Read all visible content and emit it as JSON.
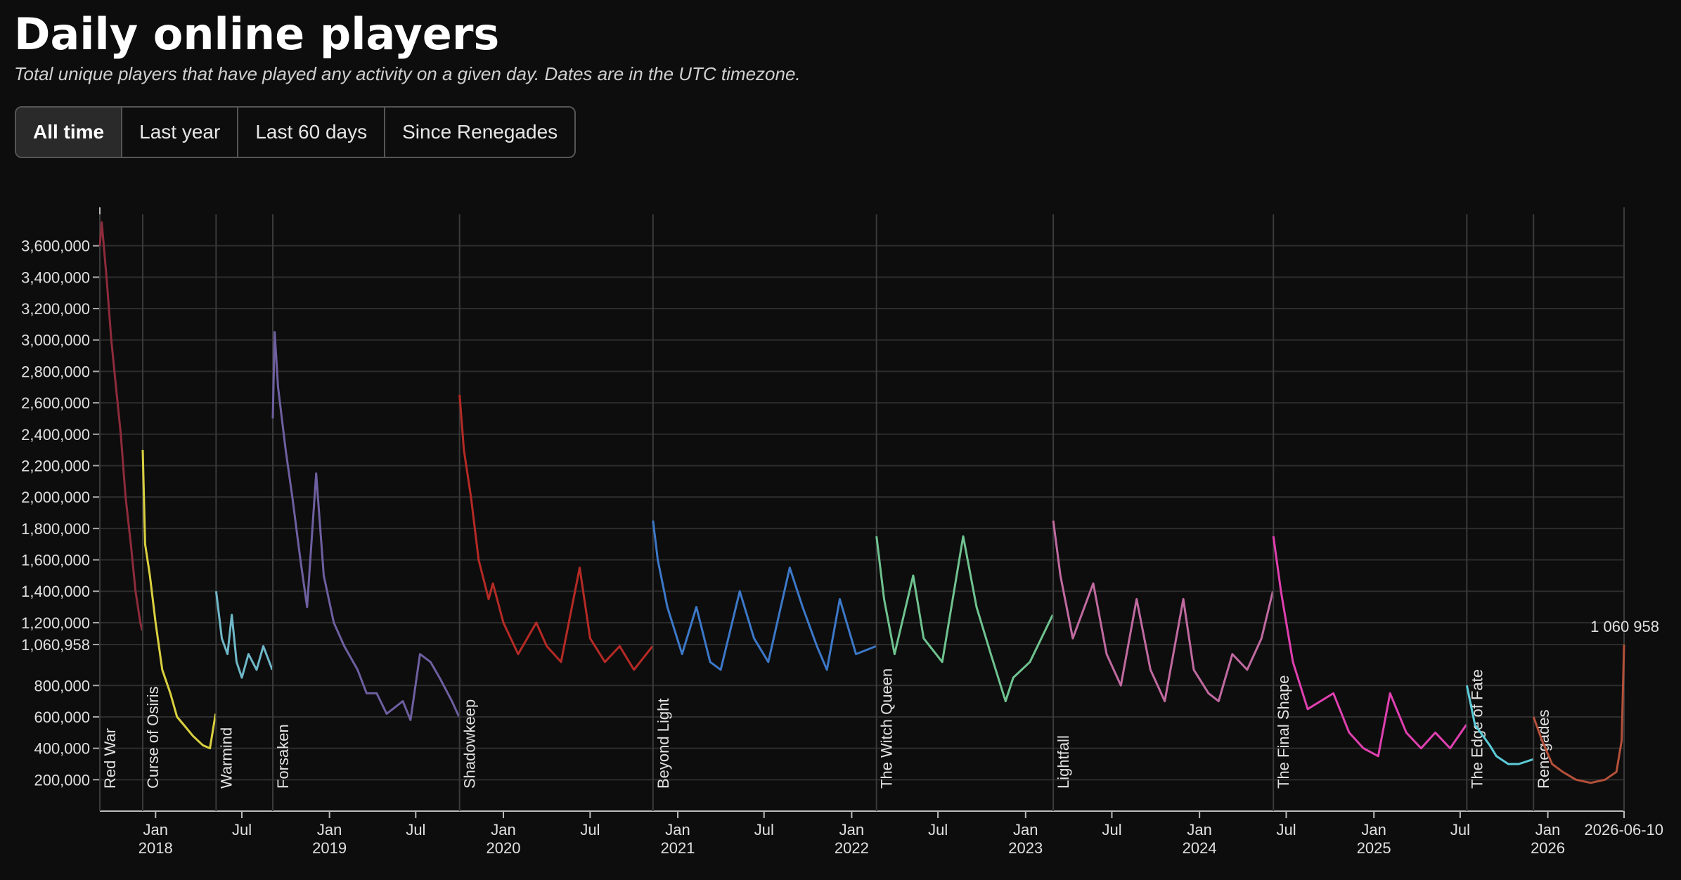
{
  "controls": [
    "All time",
    "Last year",
    "Last 60 days",
    "Since Renegades"
  ],
  "chart_data": {
    "type": "line",
    "title": "Daily online players",
    "subtitle": "Total unique players that have played any activity on a given day. Dates are in the UTC timezone.",
    "xlim": [
      "2017-09-06",
      "2026-06-10"
    ],
    "ylim": [
      0,
      3800000
    ],
    "grid": true,
    "xticks": [
      {
        "value": "2018-01-01",
        "label": "Jan\n2018"
      },
      {
        "value": "2018-07-01",
        "label": "Jul"
      },
      {
        "value": "2019-01-01",
        "label": "Jan\n2019"
      },
      {
        "value": "2019-07-01",
        "label": "Jul"
      },
      {
        "value": "2020-01-01",
        "label": "Jan\n2020"
      },
      {
        "value": "2020-07-01",
        "label": "Jul"
      },
      {
        "value": "2021-01-01",
        "label": "Jan\n2021"
      },
      {
        "value": "2021-07-01",
        "label": "Jul"
      },
      {
        "value": "2022-01-01",
        "label": "Jan\n2022"
      },
      {
        "value": "2022-07-01",
        "label": "Jul"
      },
      {
        "value": "2023-01-01",
        "label": "Jan\n2023"
      },
      {
        "value": "2023-07-01",
        "label": "Jul"
      },
      {
        "value": "2024-01-01",
        "label": "Jan\n2024"
      },
      {
        "value": "2024-07-01",
        "label": "Jul"
      },
      {
        "value": "2025-01-01",
        "label": "Jan\n2025"
      },
      {
        "value": "2025-07-01",
        "label": "Jul"
      },
      {
        "value": "2026-01-01",
        "label": "Jan\n2026"
      },
      "2026-06-10"
    ],
    "yticks": [
      {
        "value": 200000,
        "label": "200,000"
      },
      {
        "value": 400000,
        "label": "400,000"
      },
      {
        "value": 600000,
        "label": "600,000"
      },
      {
        "value": 800000,
        "label": "800,000"
      },
      {
        "value": 1060958,
        "label": "1,060,958"
      },
      {
        "value": 1200000,
        "label": "1,200,000"
      },
      {
        "value": 1400000,
        "label": "1,400,000"
      },
      {
        "value": 1600000,
        "label": "1,600,000"
      },
      {
        "value": 1800000,
        "label": "1,800,000"
      },
      {
        "value": 2000000,
        "label": "2,000,000"
      },
      {
        "value": 2200000,
        "label": "2,200,000"
      },
      {
        "value": 2400000,
        "label": "2,400,000"
      },
      {
        "value": 2600000,
        "label": "2,600,000"
      },
      {
        "value": 2800000,
        "label": "2,800,000"
      },
      {
        "value": 3000000,
        "label": "3,000,000"
      },
      {
        "value": 3200000,
        "label": "3,200,000"
      },
      {
        "value": 3400000,
        "label": "3,400,000"
      },
      {
        "value": 3600000,
        "label": "3,600,000"
      }
    ],
    "series": [
      {
        "name": "Red War",
        "color": "#8e2b3b",
        "x": [
          "2017-09-06",
          "2017-09-10",
          "2017-09-20",
          "2017-09-30",
          "2017-10-10",
          "2017-10-20",
          "2017-10-30",
          "2017-11-10",
          "2017-11-20",
          "2017-11-30",
          "2017-12-04"
        ],
        "values": [
          3600000,
          3750000,
          3400000,
          3000000,
          2700000,
          2400000,
          2000000,
          1700000,
          1400000,
          1200000,
          1150000
        ]
      },
      {
        "name": "Curse of Osiris",
        "color": "#d9d040",
        "x": [
          "2017-12-05",
          "2017-12-10",
          "2017-12-20",
          "2018-01-01",
          "2018-01-15",
          "2018-02-01",
          "2018-02-15",
          "2018-03-01",
          "2018-03-20",
          "2018-04-10",
          "2018-04-25",
          "2018-05-07"
        ],
        "values": [
          2300000,
          1700000,
          1500000,
          1200000,
          900000,
          750000,
          600000,
          550000,
          480000,
          420000,
          400000,
          620000
        ]
      },
      {
        "name": "Warmind",
        "color": "#6fb8c8",
        "x": [
          "2018-05-08",
          "2018-05-20",
          "2018-06-01",
          "2018-06-10",
          "2018-06-20",
          "2018-07-01",
          "2018-07-15",
          "2018-08-01",
          "2018-08-15",
          "2018-09-03"
        ],
        "values": [
          1400000,
          1100000,
          1000000,
          1250000,
          950000,
          850000,
          1000000,
          900000,
          1050000,
          900000
        ]
      },
      {
        "name": "Forsaken",
        "color": "#6e5fa0",
        "x": [
          "2018-09-04",
          "2018-09-08",
          "2018-09-15",
          "2018-10-01",
          "2018-10-15",
          "2018-11-01",
          "2018-11-15",
          "2018-12-04",
          "2018-12-20",
          "2019-01-10",
          "2019-02-01",
          "2019-03-01",
          "2019-03-20",
          "2019-04-10",
          "2019-05-01",
          "2019-06-04",
          "2019-06-20",
          "2019-07-10",
          "2019-08-01",
          "2019-08-20",
          "2019-09-15",
          "2019-09-30"
        ],
        "values": [
          2500000,
          3050000,
          2700000,
          2300000,
          2000000,
          1600000,
          1300000,
          2150000,
          1500000,
          1200000,
          1050000,
          900000,
          750000,
          750000,
          620000,
          700000,
          580000,
          1000000,
          950000,
          850000,
          700000,
          600000
        ]
      },
      {
        "name": "Shadowkeep",
        "color": "#b52a25",
        "x": [
          "2019-10-01",
          "2019-10-10",
          "2019-10-25",
          "2019-11-10",
          "2019-12-01",
          "2019-12-10",
          "2020-01-01",
          "2020-02-01",
          "2020-03-10",
          "2020-04-01",
          "2020-05-01",
          "2020-06-09",
          "2020-07-01",
          "2020-08-01",
          "2020-09-01",
          "2020-10-01",
          "2020-11-09"
        ],
        "values": [
          2650000,
          2300000,
          2000000,
          1600000,
          1350000,
          1450000,
          1200000,
          1000000,
          1200000,
          1050000,
          950000,
          1550000,
          1100000,
          950000,
          1050000,
          900000,
          1050000
        ]
      },
      {
        "name": "Beyond Light",
        "color": "#3c78c8",
        "x": [
          "2020-11-10",
          "2020-11-20",
          "2020-12-10",
          "2021-01-10",
          "2021-02-09",
          "2021-03-10",
          "2021-04-01",
          "2021-05-11",
          "2021-06-10",
          "2021-07-10",
          "2021-08-24",
          "2021-09-20",
          "2021-10-20",
          "2021-11-10",
          "2021-12-07",
          "2022-01-10",
          "2022-02-21"
        ],
        "values": [
          1850000,
          1600000,
          1300000,
          1000000,
          1300000,
          950000,
          900000,
          1400000,
          1100000,
          950000,
          1550000,
          1300000,
          1050000,
          900000,
          1350000,
          1000000,
          1050000
        ]
      },
      {
        "name": "The Witch Queen",
        "color": "#6fc28f",
        "x": [
          "2022-02-22",
          "2022-03-10",
          "2022-04-01",
          "2022-05-10",
          "2022-06-01",
          "2022-07-10",
          "2022-08-23",
          "2022-09-20",
          "2022-10-20",
          "2022-11-20",
          "2022-12-06",
          "2023-01-10",
          "2023-02-27"
        ],
        "values": [
          1750000,
          1350000,
          1000000,
          1500000,
          1100000,
          950000,
          1750000,
          1300000,
          1000000,
          700000,
          850000,
          950000,
          1250000
        ]
      },
      {
        "name": "Lightfall",
        "color": "#c06aa0",
        "x": [
          "2023-02-28",
          "2023-03-15",
          "2023-04-10",
          "2023-05-23",
          "2023-06-20",
          "2023-07-20",
          "2023-08-22",
          "2023-09-20",
          "2023-10-20",
          "2023-11-28",
          "2023-12-20",
          "2024-01-20",
          "2024-02-10",
          "2024-03-10",
          "2024-04-10",
          "2024-05-10",
          "2024-06-03"
        ],
        "values": [
          1850000,
          1500000,
          1100000,
          1450000,
          1000000,
          800000,
          1350000,
          900000,
          700000,
          1350000,
          900000,
          750000,
          700000,
          1000000,
          900000,
          1100000,
          1400000
        ]
      },
      {
        "name": "The Final Shape",
        "color": "#e040b0",
        "x": [
          "2024-06-04",
          "2024-06-20",
          "2024-07-15",
          "2024-08-15",
          "2024-10-08",
          "2024-11-10",
          "2024-12-10",
          "2025-01-10",
          "2025-02-04",
          "2025-03-10",
          "2025-04-10",
          "2025-05-10",
          "2025-06-10",
          "2025-07-14"
        ],
        "values": [
          1750000,
          1400000,
          950000,
          650000,
          750000,
          500000,
          400000,
          350000,
          750000,
          500000,
          400000,
          500000,
          400000,
          550000
        ]
      },
      {
        "name": "The Edge of Fate",
        "color": "#5ccbd8",
        "x": [
          "2025-07-15",
          "2025-08-01",
          "2025-09-01",
          "2025-09-15",
          "2025-10-10",
          "2025-11-01",
          "2025-12-01"
        ],
        "values": [
          800000,
          550000,
          420000,
          350000,
          300000,
          300000,
          330000
        ]
      },
      {
        "name": "Renegades",
        "color": "#b5503a",
        "x": [
          "2025-12-02",
          "2025-12-20",
          "2026-01-10",
          "2026-02-01",
          "2026-03-01",
          "2026-04-01",
          "2026-05-01",
          "2026-05-25",
          "2026-06-05",
          "2026-06-10"
        ],
        "values": [
          600000,
          450000,
          300000,
          250000,
          200000,
          180000,
          200000,
          250000,
          450000,
          1060958
        ],
        "value_labels": [
          null,
          null,
          null,
          null,
          null,
          null,
          null,
          null,
          null,
          "1 060 958"
        ]
      }
    ]
  }
}
